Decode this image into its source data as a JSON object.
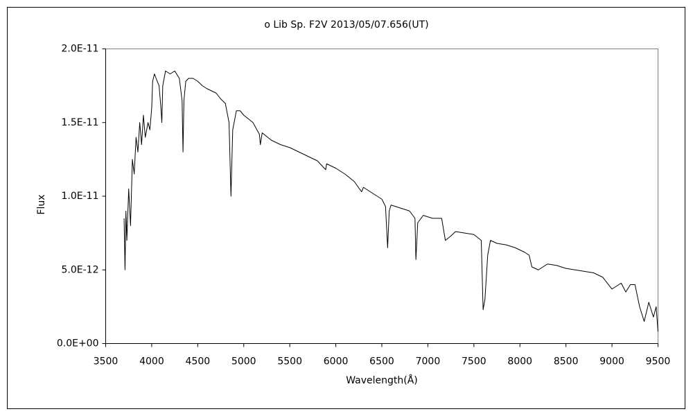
{
  "chart_data": {
    "type": "line",
    "title": "o Lib   Sp. F2V   2013/05/07.656(UT)",
    "x_label": "Wavelength(Å)",
    "y_label": "Flux",
    "xlim": [
      3500,
      9500
    ],
    "ylim": [
      0,
      2e-11
    ],
    "xticks": [
      3500,
      4000,
      4500,
      5000,
      5500,
      6000,
      6500,
      7000,
      7500,
      8000,
      8500,
      9000,
      9500
    ],
    "yticks": [
      {
        "value": 0,
        "label": "0.0E+00"
      },
      {
        "value": 5e-12,
        "label": "5.0E-12"
      },
      {
        "value": 1e-11,
        "label": "1.0E-11"
      },
      {
        "value": 1.5e-11,
        "label": "1.5E-11"
      },
      {
        "value": 2e-11,
        "label": "2.0E-11"
      }
    ],
    "grid": false,
    "series": [
      {
        "color": "#000000",
        "x": [
          3700,
          3710,
          3720,
          3730,
          3750,
          3770,
          3790,
          3810,
          3830,
          3850,
          3870,
          3890,
          3910,
          3930,
          3960,
          3980,
          4000,
          4010,
          4030,
          4060,
          4080,
          4100,
          4110,
          4120,
          4150,
          4200,
          4250,
          4300,
          4330,
          4340,
          4350,
          4370,
          4400,
          4450,
          4500,
          4550,
          4600,
          4700,
          4750,
          4800,
          4840,
          4861,
          4880,
          4920,
          4960,
          5000,
          5100,
          5170,
          5180,
          5200,
          5300,
          5400,
          5500,
          5600,
          5700,
          5800,
          5890,
          5900,
          6000,
          6100,
          6200,
          6280,
          6300,
          6400,
          6500,
          6540,
          6563,
          6580,
          6600,
          6700,
          6800,
          6860,
          6870,
          6890,
          6950,
          7050,
          7150,
          7190,
          7250,
          7300,
          7400,
          7500,
          7580,
          7600,
          7620,
          7650,
          7680,
          7750,
          7850,
          7950,
          8050,
          8100,
          8130,
          8200,
          8300,
          8400,
          8500,
          8600,
          8700,
          8800,
          8900,
          9000,
          9050,
          9100,
          9150,
          9200,
          9250,
          9300,
          9350,
          9400,
          9450,
          9480,
          9500
        ],
        "values": [
          8.5e-12,
          5e-12,
          9e-12,
          7e-12,
          1.05e-11,
          8e-12,
          1.25e-11,
          1.15e-11,
          1.4e-11,
          1.3e-11,
          1.5e-11,
          1.35e-11,
          1.55e-11,
          1.4e-11,
          1.5e-11,
          1.45e-11,
          1.6e-11,
          1.78e-11,
          1.83e-11,
          1.78e-11,
          1.75e-11,
          1.6e-11,
          1.5e-11,
          1.75e-11,
          1.85e-11,
          1.83e-11,
          1.85e-11,
          1.8e-11,
          1.65e-11,
          1.3e-11,
          1.65e-11,
          1.78e-11,
          1.8e-11,
          1.8e-11,
          1.78e-11,
          1.75e-11,
          1.73e-11,
          1.7e-11,
          1.66e-11,
          1.63e-11,
          1.5e-11,
          1e-11,
          1.45e-11,
          1.58e-11,
          1.58e-11,
          1.55e-11,
          1.5e-11,
          1.42e-11,
          1.35e-11,
          1.43e-11,
          1.38e-11,
          1.35e-11,
          1.33e-11,
          1.3e-11,
          1.27e-11,
          1.24e-11,
          1.18e-11,
          1.22e-11,
          1.19e-11,
          1.15e-11,
          1.1e-11,
          1.03e-11,
          1.06e-11,
          1.02e-11,
          9.8e-12,
          9.3e-12,
          6.5e-12,
          9e-12,
          9.4e-12,
          9.2e-12,
          9e-12,
          8.5e-12,
          5.7e-12,
          8.2e-12,
          8.7e-12,
          8.5e-12,
          8.5e-12,
          7e-12,
          7.3e-12,
          7.6e-12,
          7.5e-12,
          7.4e-12,
          7e-12,
          2.3e-12,
          3e-12,
          6e-12,
          7e-12,
          6.8e-12,
          6.7e-12,
          6.5e-12,
          6.2e-12,
          6e-12,
          5.2e-12,
          5e-12,
          5.4e-12,
          5.3e-12,
          5.1e-12,
          5e-12,
          4.9e-12,
          4.8e-12,
          4.5e-12,
          3.7e-12,
          3.9e-12,
          4.1e-12,
          3.5e-12,
          4e-12,
          4e-12,
          2.5e-12,
          1.5e-12,
          2.8e-12,
          1.8e-12,
          2.5e-12,
          8e-13
        ]
      }
    ]
  }
}
